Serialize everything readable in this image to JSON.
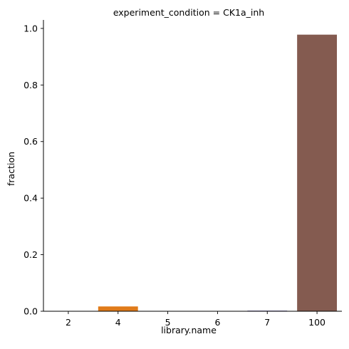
{
  "chart_data": {
    "type": "bar",
    "title": "experiment_condition = CK1a_inh",
    "xlabel": "library.name",
    "ylabel": "fraction",
    "categories": [
      "2",
      "4",
      "5",
      "6",
      "7",
      "100"
    ],
    "values": [
      0.0,
      0.017,
      0.0,
      0.0,
      0.002,
      0.978
    ],
    "colors": [
      "#1f77b4",
      "#e07b1a",
      "#2ca02c",
      "#d62728",
      "#4b3e9c",
      "#845b50"
    ],
    "ylim": [
      0,
      1.03
    ],
    "yticks": [
      "0.0",
      "0.2",
      "0.4",
      "0.6",
      "0.8",
      "1.0"
    ],
    "grid": false,
    "legend": "none"
  }
}
